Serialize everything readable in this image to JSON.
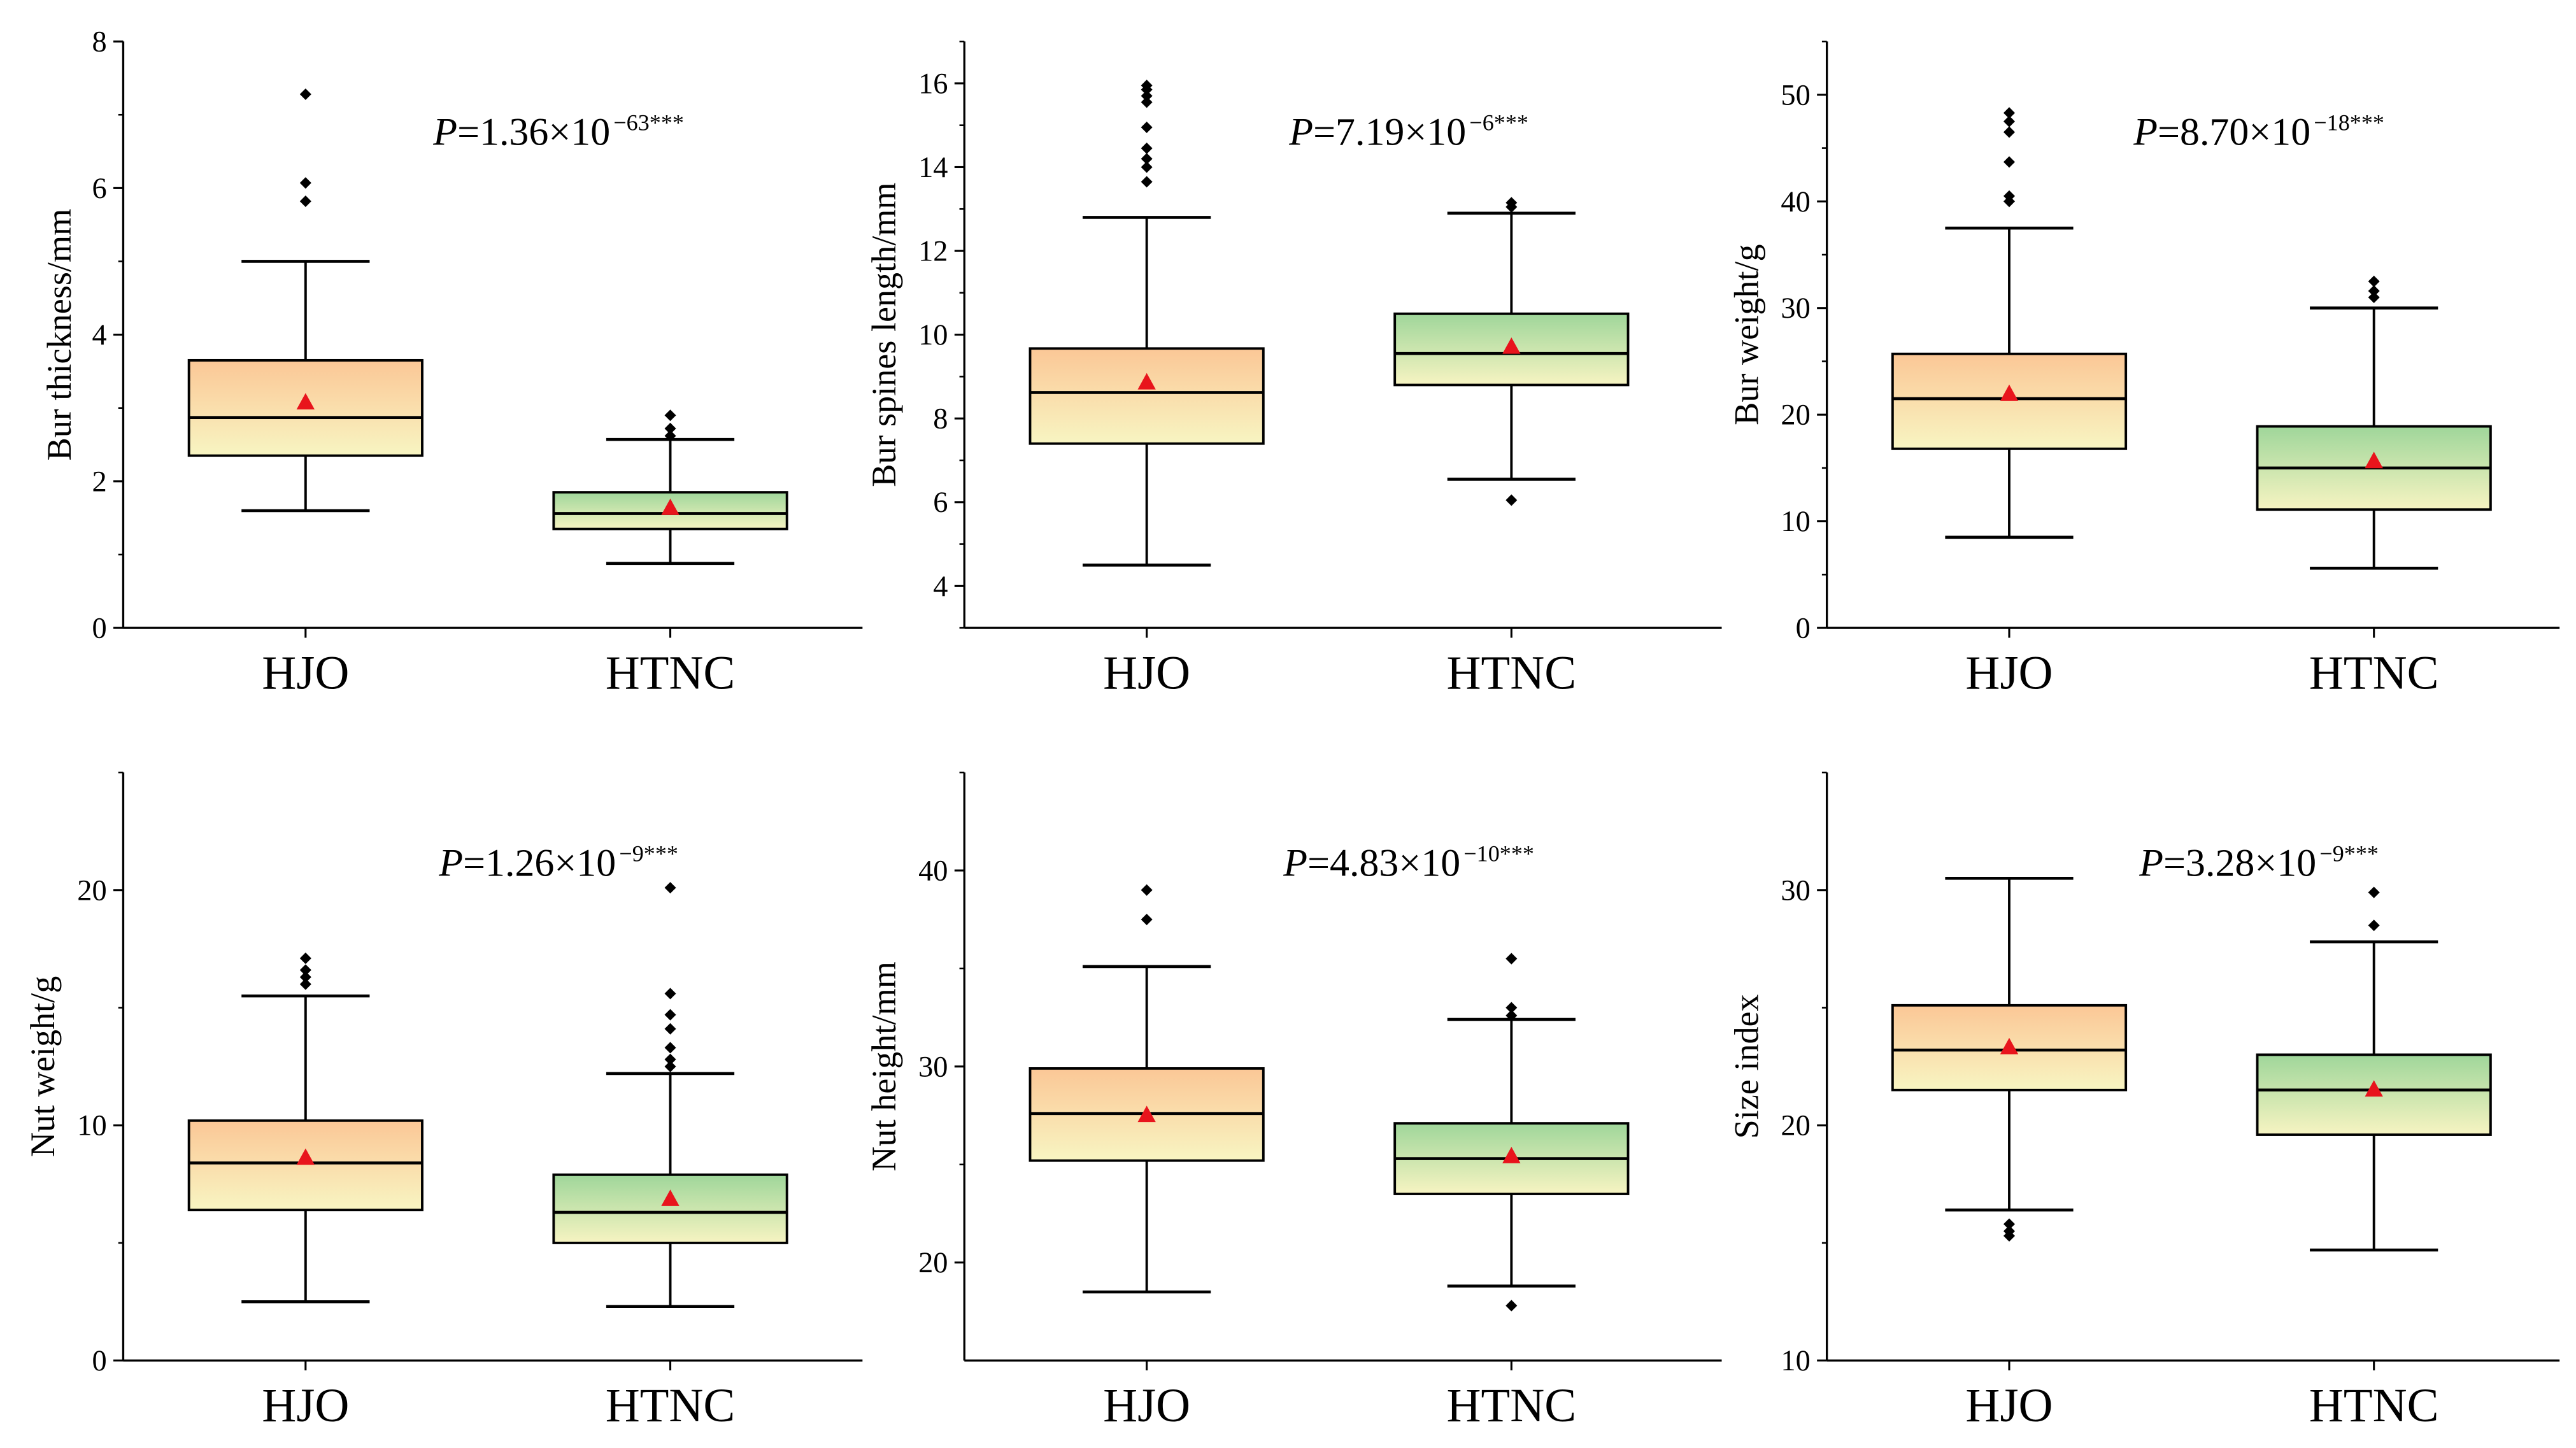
{
  "categories": [
    "HJO",
    "HTNC"
  ],
  "colors": {
    "HJO_top": "#fbc796",
    "HJO_bottom": "#f8f5c2",
    "HTNC_top": "#9fd69a",
    "HTNC_bottom": "#f7f4c2",
    "mean_marker": "#e8141c",
    "outlier": "#000000"
  },
  "chart_data": [
    {
      "type": "box",
      "ylabel": "Bur thickness/mm",
      "ylim": [
        0,
        8
      ],
      "ticks": [
        0,
        2,
        4,
        6,
        8
      ],
      "minor": [
        1,
        3,
        5,
        7
      ],
      "p_label": "P",
      "p_mantissa": "1.36",
      "p_exponent": "−63",
      "significance": "***",
      "series": [
        {
          "name": "HJO",
          "whisker_low": 1.6,
          "q1": 2.35,
          "median": 2.87,
          "q3": 3.65,
          "whisker_high": 5.0,
          "mean": 3.07,
          "outliers": [
            5.82,
            6.07,
            7.28
          ]
        },
        {
          "name": "HTNC",
          "whisker_low": 0.88,
          "q1": 1.35,
          "median": 1.56,
          "q3": 1.85,
          "whisker_high": 2.57,
          "mean": 1.63,
          "outliers": [
            2.62,
            2.72,
            2.9
          ]
        }
      ]
    },
    {
      "type": "box",
      "ylabel": "Bur spines length/mm",
      "ylim": [
        3,
        17
      ],
      "ticks": [
        4,
        6,
        8,
        10,
        12,
        14,
        16
      ],
      "minor": [
        3,
        5,
        7,
        9,
        11,
        13,
        15,
        17
      ],
      "p_label": "P",
      "p_mantissa": "7.19",
      "p_exponent": "−6",
      "significance": "***",
      "series": [
        {
          "name": "HJO",
          "whisker_low": 4.5,
          "q1": 7.4,
          "median": 8.62,
          "q3": 9.67,
          "whisker_high": 12.8,
          "mean": 8.85,
          "outliers": [
            13.65,
            14.0,
            14.2,
            14.45,
            14.95,
            15.55,
            15.7,
            15.85,
            15.95
          ]
        },
        {
          "name": "HTNC",
          "whisker_low": 6.55,
          "q1": 8.8,
          "median": 9.55,
          "q3": 10.5,
          "whisker_high": 12.9,
          "mean": 9.7,
          "outliers": [
            6.05,
            13.05,
            13.15
          ]
        }
      ]
    },
    {
      "type": "box",
      "ylabel": "Bur weight/g",
      "ylim": [
        0,
        55
      ],
      "ticks": [
        0,
        10,
        20,
        30,
        40,
        50
      ],
      "minor": [
        5,
        15,
        25,
        35,
        45,
        55
      ],
      "p_label": "P",
      "p_mantissa": "8.70",
      "p_exponent": "−18",
      "significance": "***",
      "series": [
        {
          "name": "HJO",
          "whisker_low": 8.5,
          "q1": 16.8,
          "median": 21.5,
          "q3": 25.7,
          "whisker_high": 37.5,
          "mean": 21.9,
          "outliers": [
            40.0,
            40.5,
            43.7,
            46.5,
            47.5,
            48.3
          ]
        },
        {
          "name": "HTNC",
          "whisker_low": 5.6,
          "q1": 11.1,
          "median": 15.0,
          "q3": 18.9,
          "whisker_high": 30.0,
          "mean": 15.6,
          "outliers": [
            31.0,
            31.6,
            32.5
          ]
        }
      ]
    },
    {
      "type": "box",
      "ylabel": "Nut weight/g",
      "ylim": [
        0,
        25
      ],
      "ticks": [
        0,
        10,
        20
      ],
      "minor": [
        5,
        15,
        25
      ],
      "p_label": "P",
      "p_mantissa": "1.26",
      "p_exponent": "−9",
      "significance": "***",
      "series": [
        {
          "name": "HJO",
          "whisker_low": 2.5,
          "q1": 6.4,
          "median": 8.4,
          "q3": 10.2,
          "whisker_high": 15.5,
          "mean": 8.6,
          "outliers": [
            16.0,
            16.3,
            16.6,
            17.1
          ]
        },
        {
          "name": "HTNC",
          "whisker_low": 2.3,
          "q1": 5.0,
          "median": 6.3,
          "q3": 7.9,
          "whisker_high": 12.2,
          "mean": 6.85,
          "outliers": [
            12.5,
            12.8,
            13.3,
            14.1,
            14.7,
            15.6,
            20.1
          ]
        }
      ]
    },
    {
      "type": "box",
      "ylabel": "Nut height/mm",
      "ylim": [
        15,
        45
      ],
      "ticks": [
        20,
        30,
        40
      ],
      "minor": [
        25,
        35,
        45
      ],
      "p_label": "P",
      "p_mantissa": "4.83",
      "p_exponent": "−10",
      "significance": "***",
      "series": [
        {
          "name": "HJO",
          "whisker_low": 18.5,
          "q1": 25.2,
          "median": 27.6,
          "q3": 29.9,
          "whisker_high": 35.1,
          "mean": 27.5,
          "outliers": [
            37.5,
            39.0
          ]
        },
        {
          "name": "HTNC",
          "whisker_low": 18.8,
          "q1": 23.5,
          "median": 25.3,
          "q3": 27.1,
          "whisker_high": 32.4,
          "mean": 25.4,
          "outliers": [
            17.8,
            32.6,
            33.0,
            35.5
          ]
        }
      ]
    },
    {
      "type": "box",
      "ylabel": "Size index",
      "ylim": [
        10,
        35
      ],
      "ticks": [
        10,
        20,
        30
      ],
      "minor": [
        15,
        25,
        35
      ],
      "p_label": "P",
      "p_mantissa": "3.28",
      "p_exponent": "−9",
      "significance": "***",
      "series": [
        {
          "name": "HJO",
          "whisker_low": 16.4,
          "q1": 21.5,
          "median": 23.2,
          "q3": 25.1,
          "whisker_high": 30.5,
          "mean": 23.3,
          "outliers": [
            15.3,
            15.5,
            15.8
          ]
        },
        {
          "name": "HTNC",
          "whisker_low": 14.7,
          "q1": 19.6,
          "median": 21.5,
          "q3": 23.0,
          "whisker_high": 27.8,
          "mean": 21.5,
          "outliers": [
            28.5,
            29.9
          ]
        }
      ]
    }
  ]
}
